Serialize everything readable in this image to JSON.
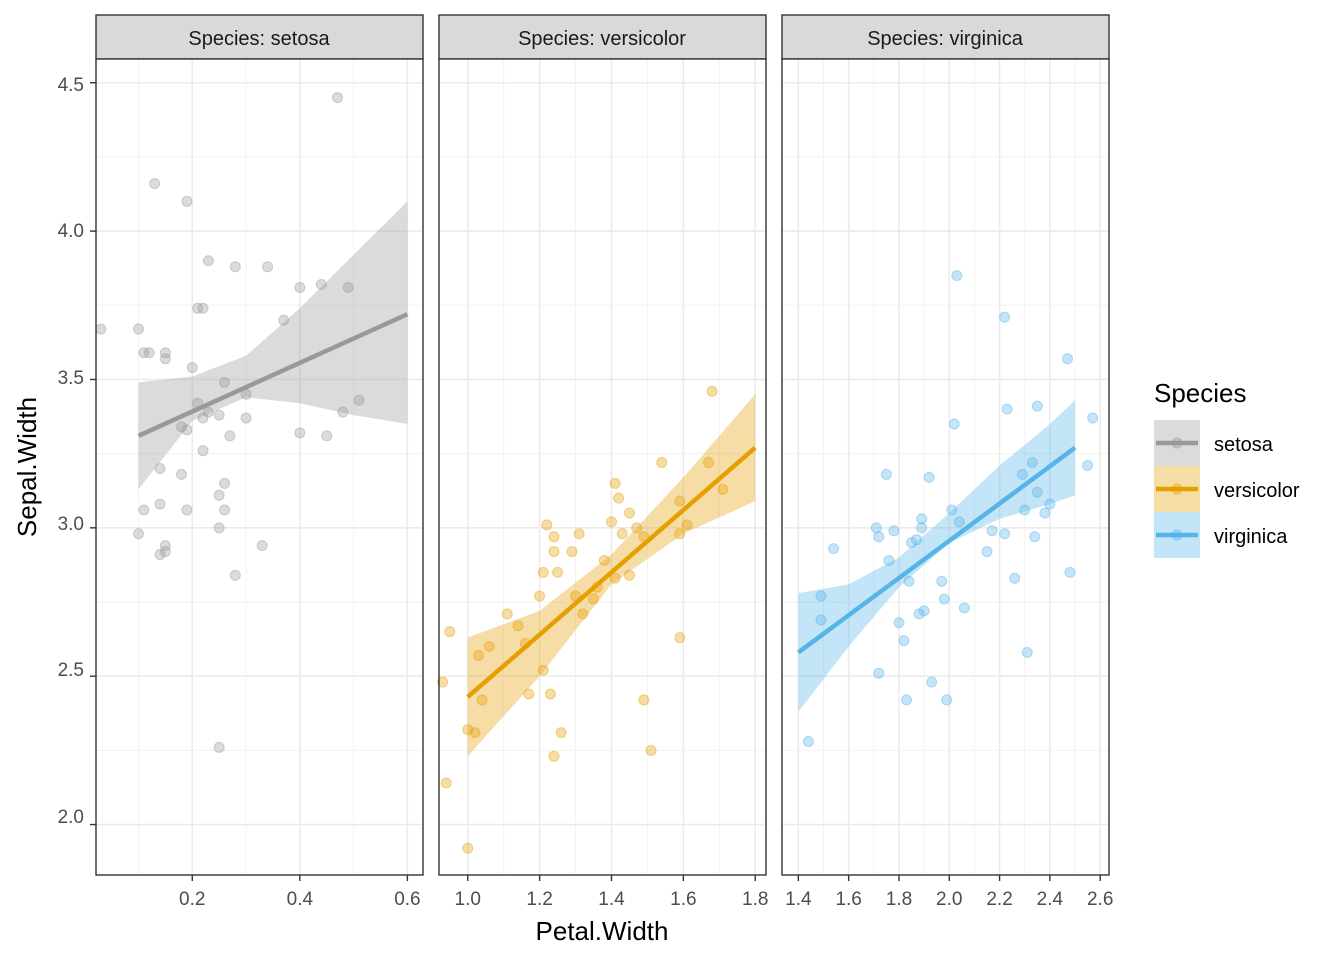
{
  "chart_data": {
    "type": "scatter",
    "xlabel": "Petal.Width",
    "ylabel": "Sepal.Width",
    "ylim": [
      1.83,
      4.58
    ],
    "y_ticks": [
      "2.0",
      "2.5",
      "3.0",
      "3.5",
      "4.0",
      "4.5"
    ],
    "legend": {
      "title": "Species",
      "position": "right"
    },
    "panels": [
      {
        "name": "setosa",
        "strip": "Species: setosa",
        "color": "#999999",
        "xlim": [
          0.021,
          0.629
        ],
        "x_ticks": [
          "0.2",
          "0.4",
          "0.6"
        ],
        "points": [
          [
            0.03,
            3.67
          ],
          [
            0.1,
            3.67
          ],
          [
            0.11,
            3.59
          ],
          [
            0.12,
            3.59
          ],
          [
            0.15,
            3.59
          ],
          [
            0.15,
            3.57
          ],
          [
            0.2,
            3.54
          ],
          [
            0.21,
            3.74
          ],
          [
            0.22,
            3.74
          ],
          [
            0.23,
            3.9
          ],
          [
            0.28,
            3.88
          ],
          [
            0.34,
            3.88
          ],
          [
            0.4,
            3.81
          ],
          [
            0.44,
            3.82
          ],
          [
            0.49,
            3.81
          ],
          [
            0.37,
            3.7
          ],
          [
            0.47,
            4.45
          ],
          [
            0.13,
            4.16
          ],
          [
            0.19,
            4.1
          ],
          [
            0.26,
            3.49
          ],
          [
            0.3,
            3.45
          ],
          [
            0.21,
            3.42
          ],
          [
            0.23,
            3.39
          ],
          [
            0.25,
            3.38
          ],
          [
            0.22,
            3.37
          ],
          [
            0.3,
            3.37
          ],
          [
            0.18,
            3.34
          ],
          [
            0.19,
            3.33
          ],
          [
            0.27,
            3.31
          ],
          [
            0.4,
            3.32
          ],
          [
            0.45,
            3.31
          ],
          [
            0.48,
            3.39
          ],
          [
            0.51,
            3.43
          ],
          [
            0.22,
            3.26
          ],
          [
            0.14,
            3.2
          ],
          [
            0.18,
            3.18
          ],
          [
            0.26,
            3.15
          ],
          [
            0.25,
            3.11
          ],
          [
            0.14,
            3.08
          ],
          [
            0.11,
            3.06
          ],
          [
            0.19,
            3.06
          ],
          [
            0.26,
            3.06
          ],
          [
            0.25,
            3.0
          ],
          [
            0.1,
            2.98
          ],
          [
            0.33,
            2.94
          ],
          [
            0.15,
            2.94
          ],
          [
            0.15,
            2.92
          ],
          [
            0.14,
            2.91
          ],
          [
            0.28,
            2.84
          ],
          [
            0.25,
            2.26
          ]
        ],
        "fit": {
          "x": [
            0.1,
            0.6
          ],
          "y": [
            3.31,
            3.72
          ]
        },
        "band": {
          "x": [
            0.1,
            0.2,
            0.3,
            0.4,
            0.5,
            0.6
          ],
          "lower": [
            3.13,
            3.36,
            3.44,
            3.42,
            3.38,
            3.35
          ],
          "upper": [
            3.49,
            3.51,
            3.58,
            3.74,
            3.92,
            4.1
          ]
        }
      },
      {
        "name": "versicolor",
        "strip": "Species: versicolor",
        "color": "#E69F00",
        "xlim": [
          0.92,
          1.83
        ],
        "x_ticks": [
          "1.0",
          "1.2",
          "1.4",
          "1.6",
          "1.8"
        ],
        "points": [
          [
            0.93,
            2.48
          ],
          [
            0.95,
            2.65
          ],
          [
            0.94,
            2.14
          ],
          [
            1.0,
            1.92
          ],
          [
            1.0,
            2.32
          ],
          [
            1.02,
            2.31
          ],
          [
            1.03,
            2.57
          ],
          [
            1.04,
            2.42
          ],
          [
            1.06,
            2.6
          ],
          [
            1.11,
            2.71
          ],
          [
            1.14,
            2.67
          ],
          [
            1.16,
            2.61
          ],
          [
            1.17,
            2.44
          ],
          [
            1.2,
            2.77
          ],
          [
            1.21,
            2.52
          ],
          [
            1.21,
            2.85
          ],
          [
            1.22,
            3.01
          ],
          [
            1.23,
            2.44
          ],
          [
            1.24,
            2.92
          ],
          [
            1.24,
            2.97
          ],
          [
            1.24,
            2.23
          ],
          [
            1.25,
            2.85
          ],
          [
            1.26,
            2.31
          ],
          [
            1.29,
            2.92
          ],
          [
            1.3,
            2.77
          ],
          [
            1.31,
            2.98
          ],
          [
            1.32,
            2.71
          ],
          [
            1.35,
            2.76
          ],
          [
            1.36,
            2.8
          ],
          [
            1.38,
            2.89
          ],
          [
            1.4,
            3.02
          ],
          [
            1.41,
            2.83
          ],
          [
            1.41,
            3.15
          ],
          [
            1.42,
            3.1
          ],
          [
            1.43,
            2.98
          ],
          [
            1.45,
            2.84
          ],
          [
            1.45,
            3.05
          ],
          [
            1.47,
            3.0
          ],
          [
            1.49,
            2.97
          ],
          [
            1.49,
            2.42
          ],
          [
            1.51,
            2.25
          ],
          [
            1.54,
            3.22
          ],
          [
            1.59,
            2.63
          ],
          [
            1.59,
            2.98
          ],
          [
            1.59,
            3.09
          ],
          [
            1.61,
            3.01
          ],
          [
            1.67,
            3.22
          ],
          [
            1.68,
            3.46
          ],
          [
            1.71,
            3.13
          ]
        ],
        "fit": {
          "x": [
            1.0,
            1.8
          ],
          "y": [
            2.43,
            3.27
          ]
        },
        "band": {
          "x": [
            1.0,
            1.2,
            1.4,
            1.6,
            1.8
          ],
          "lower": [
            2.23,
            2.5,
            2.81,
            2.98,
            3.09
          ],
          "upper": [
            2.63,
            2.72,
            2.91,
            3.17,
            3.45
          ]
        }
      },
      {
        "name": "virginica",
        "strip": "Species: virginica",
        "color": "#56B4E9",
        "xlim": [
          1.335,
          2.635
        ],
        "x_ticks": [
          "1.4",
          "1.6",
          "1.8",
          "2.0",
          "2.2",
          "2.4",
          "2.6"
        ],
        "points": [
          [
            1.44,
            2.28
          ],
          [
            1.49,
            2.77
          ],
          [
            1.49,
            2.69
          ],
          [
            1.54,
            2.93
          ],
          [
            1.71,
            3.0
          ],
          [
            1.72,
            2.97
          ],
          [
            1.72,
            2.51
          ],
          [
            1.75,
            3.18
          ],
          [
            1.76,
            2.89
          ],
          [
            1.78,
            2.99
          ],
          [
            1.8,
            2.68
          ],
          [
            1.82,
            2.62
          ],
          [
            1.83,
            2.42
          ],
          [
            1.84,
            2.82
          ],
          [
            1.85,
            2.95
          ],
          [
            1.87,
            2.96
          ],
          [
            1.88,
            2.71
          ],
          [
            1.89,
            3.03
          ],
          [
            1.89,
            3.0
          ],
          [
            1.9,
            2.72
          ],
          [
            1.92,
            3.17
          ],
          [
            1.93,
            2.48
          ],
          [
            1.97,
            2.82
          ],
          [
            1.98,
            2.76
          ],
          [
            1.99,
            2.42
          ],
          [
            2.01,
            3.06
          ],
          [
            2.02,
            3.35
          ],
          [
            2.03,
            3.85
          ],
          [
            2.04,
            3.02
          ],
          [
            2.06,
            2.73
          ],
          [
            2.15,
            2.92
          ],
          [
            2.17,
            2.99
          ],
          [
            2.22,
            3.71
          ],
          [
            2.22,
            2.98
          ],
          [
            2.23,
            3.4
          ],
          [
            2.26,
            2.83
          ],
          [
            2.29,
            3.18
          ],
          [
            2.3,
            3.06
          ],
          [
            2.31,
            2.58
          ],
          [
            2.33,
            3.22
          ],
          [
            2.34,
            2.97
          ],
          [
            2.35,
            3.41
          ],
          [
            2.35,
            3.12
          ],
          [
            2.38,
            3.05
          ],
          [
            2.4,
            3.08
          ],
          [
            2.47,
            3.57
          ],
          [
            2.48,
            2.85
          ],
          [
            2.55,
            3.21
          ],
          [
            2.57,
            3.37
          ]
        ],
        "fit": {
          "x": [
            1.4,
            2.5
          ],
          "y": [
            2.58,
            3.27
          ]
        },
        "band": {
          "x": [
            1.4,
            1.6,
            1.8,
            2.0,
            2.2,
            2.4,
            2.5
          ],
          "lower": [
            2.38,
            2.6,
            2.8,
            2.95,
            3.03,
            3.08,
            3.11
          ],
          "upper": [
            2.78,
            2.81,
            2.9,
            3.05,
            3.21,
            3.35,
            3.43
          ]
        }
      }
    ]
  }
}
